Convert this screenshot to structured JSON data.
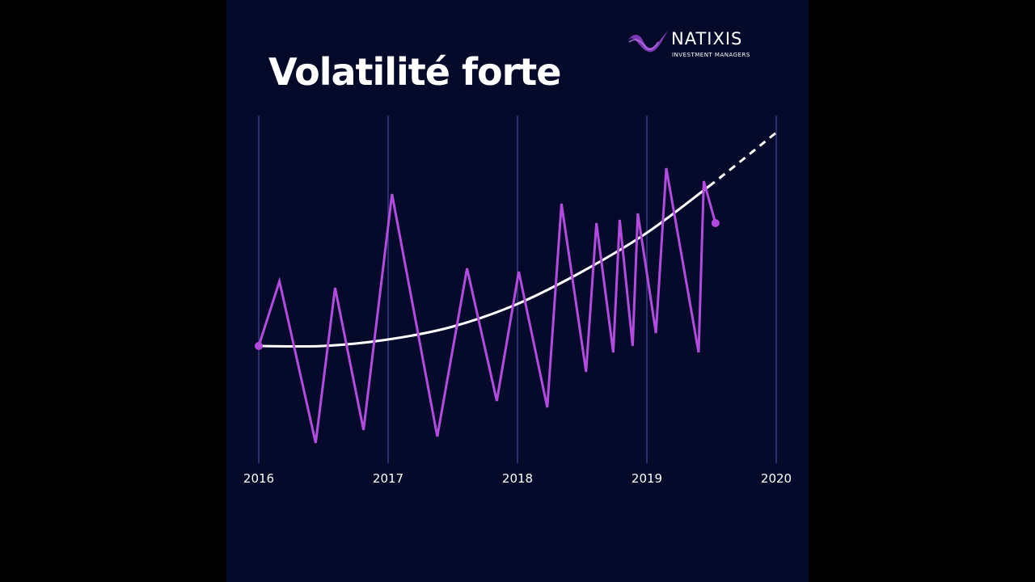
{
  "title": "Volatilité forte",
  "logo": {
    "name": "NATIXIS",
    "subtitle": "INVESTMENT MANAGERS",
    "icon": "natixis-swirl-icon"
  },
  "colors": {
    "background": "#050a2b",
    "series": "#b44be0",
    "trend": "#ffffff",
    "gridline": "#2a2d6e"
  },
  "chart_data": {
    "type": "line",
    "title": "Volatilité forte",
    "xlabel": "",
    "ylabel": "",
    "x_ticks": [
      "2016",
      "2017",
      "2018",
      "2019",
      "2020"
    ],
    "xlim": [
      2016,
      2020
    ],
    "ylim": [
      0,
      100
    ],
    "grid": "vertical lines at each year",
    "legend": "none",
    "series": [
      {
        "style": "zigzag line",
        "x": [
          2016.0,
          2016.16,
          2016.44,
          2016.59,
          2016.81,
          2017.03,
          2017.38,
          2017.61,
          2017.84,
          2018.01,
          2018.23,
          2018.34,
          2018.53,
          2018.61,
          2018.74,
          2018.79,
          2018.89,
          2018.93,
          2019.07,
          2019.15,
          2019.4,
          2019.44,
          2019.53
        ],
        "y": [
          30,
          50,
          0,
          48,
          4,
          77,
          2,
          54,
          13,
          53,
          11,
          74,
          22,
          68,
          28,
          69,
          30,
          71,
          34,
          85,
          28,
          81,
          68
        ]
      },
      {
        "style": "smooth trend curve (solid, then dashed projection after 2019.5)",
        "x": [
          2016.0,
          2016.5,
          2017.0,
          2017.5,
          2018.0,
          2018.5,
          2019.0,
          2019.5,
          2020.0
        ],
        "y": [
          30,
          30,
          32,
          36,
          43,
          53,
          65,
          80,
          96
        ]
      }
    ]
  }
}
